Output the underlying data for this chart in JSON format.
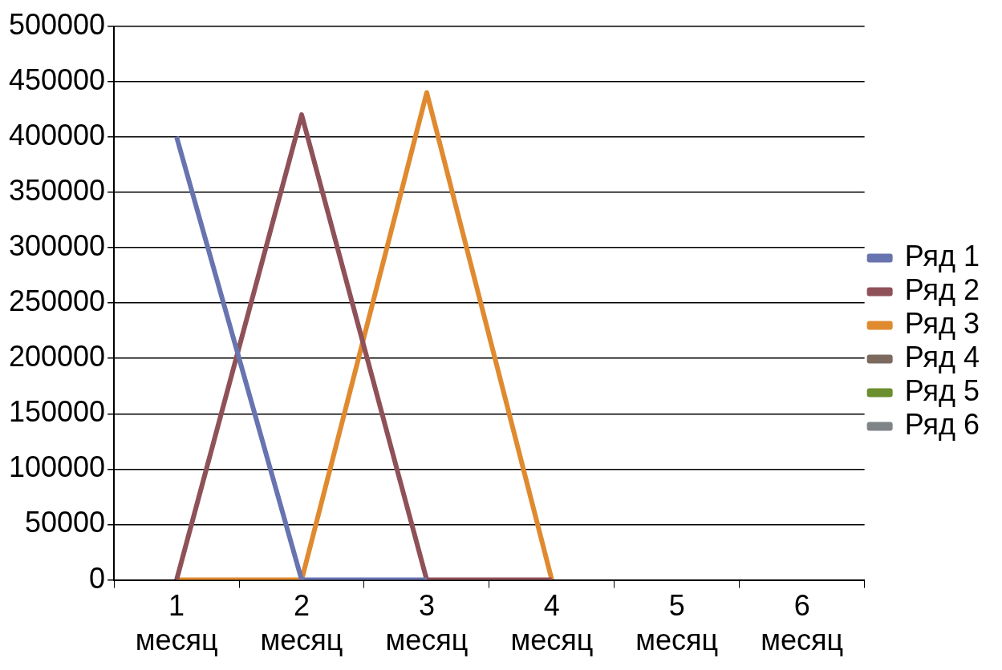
{
  "chart_data": {
    "type": "line",
    "categories": [
      "1 месяц",
      "2 месяц",
      "3 месяц",
      "4 месяц",
      "5 месяц",
      "6 месяц"
    ],
    "series": [
      {
        "name": "Ряд 1",
        "color": "#6874b0",
        "values": [
          400000,
          0,
          0,
          null,
          null,
          null
        ]
      },
      {
        "name": "Ряд 2",
        "color": "#8f5158",
        "values": [
          0,
          420000,
          0,
          0,
          null,
          null
        ]
      },
      {
        "name": "Ряд 3",
        "color": "#e08a30",
        "values": [
          0,
          0,
          440000,
          0,
          null,
          null
        ]
      },
      {
        "name": "Ряд 4",
        "color": "#7d6a5e",
        "values": [
          null,
          null,
          null,
          null,
          null,
          null
        ]
      },
      {
        "name": "Ряд 5",
        "color": "#6b8e2e",
        "values": [
          null,
          null,
          null,
          null,
          null,
          null
        ]
      },
      {
        "name": "Ряд 6",
        "color": "#7f8487",
        "values": [
          null,
          null,
          null,
          null,
          null,
          null
        ]
      }
    ],
    "ylim": [
      0,
      500000
    ],
    "yticks": [
      0,
      50000,
      100000,
      150000,
      200000,
      250000,
      300000,
      350000,
      400000,
      450000,
      500000
    ],
    "grid": "y",
    "legend": "right",
    "marker": "none",
    "line_style": "solid"
  }
}
